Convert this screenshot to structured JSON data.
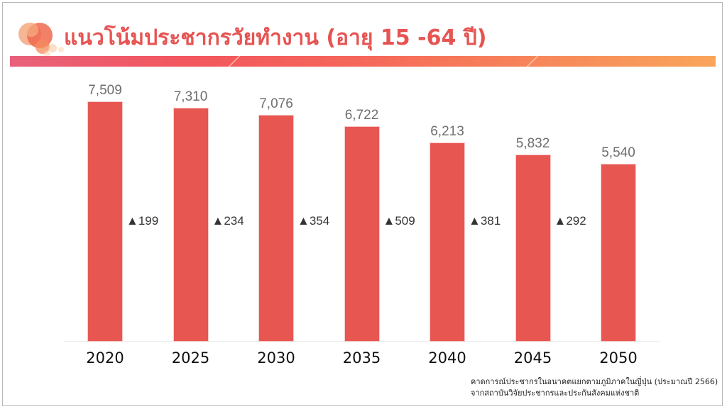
{
  "slide": {
    "title": "แนวโน้มประชากรวัยทำงาน (อายุ 15 -64 ปี)",
    "source_line1": "คาดการณ์ประชากรในอนาคตแยกตามภูมิภาคในญี่ปุ่น (ประมาณปี 2566)",
    "source_line2": "จากสถาบันวิจัยประชากรและประกันสังคมแห่งชาติ",
    "accent_color": "#e65452",
    "bar_color": "#e85652"
  },
  "chart_data": {
    "type": "bar",
    "title": "แนวโน้มประชากรวัยทำงาน (อายุ 15 -64 ปี)",
    "xlabel": "",
    "ylabel": "",
    "categories": [
      "2020",
      "2025",
      "2030",
      "2035",
      "2040",
      "2045",
      "2050"
    ],
    "values": [
      7509,
      7310,
      7076,
      6722,
      6213,
      5832,
      5540
    ],
    "value_labels": [
      "7,509",
      "7,310",
      "7,076",
      "6,722",
      "6,213",
      "5,832",
      "5,540"
    ],
    "annotations": [
      {
        "between": [
          "2020",
          "2025"
        ],
        "text": "▲199"
      },
      {
        "between": [
          "2025",
          "2030"
        ],
        "text": "▲234"
      },
      {
        "between": [
          "2030",
          "2035"
        ],
        "text": "▲354"
      },
      {
        "between": [
          "2035",
          "2040"
        ],
        "text": "▲509"
      },
      {
        "between": [
          "2040",
          "2045"
        ],
        "text": "▲381"
      },
      {
        "between": [
          "2045",
          "2050"
        ],
        "text": "▲292"
      }
    ],
    "ylim": [
      0,
      7800
    ],
    "grid": false,
    "legend": null
  }
}
